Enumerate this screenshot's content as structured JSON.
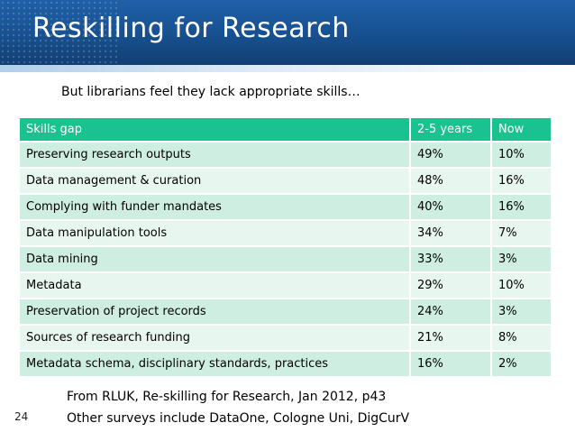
{
  "slide": {
    "title": "Reskilling for Research",
    "subtitle": "But librarians feel they lack appropriate skills…",
    "number": "24"
  },
  "table": {
    "headers": [
      "Skills gap",
      "2-5 years",
      "Now"
    ],
    "rows": [
      [
        "Preserving research outputs",
        "49%",
        "10%"
      ],
      [
        "Data management & curation",
        "48%",
        "16%"
      ],
      [
        "Complying with funder mandates",
        "40%",
        "16%"
      ],
      [
        "Data manipulation tools",
        "34%",
        "7%"
      ],
      [
        "Data mining",
        "33%",
        "3%"
      ],
      [
        "Metadata",
        "29%",
        "10%"
      ],
      [
        "Preservation of project records",
        "24%",
        "3%"
      ],
      [
        "Sources of research funding",
        "21%",
        "8%"
      ],
      [
        "Metadata schema, disciplinary standards, practices",
        "16%",
        "2%"
      ]
    ]
  },
  "footer": {
    "line1": "From RLUK, Re-skilling for Research, Jan 2012, p43",
    "line2": "Other surveys include DataOne, Cologne Uni, DigCurV"
  },
  "colors": {
    "header_bg": "#1f5fa8",
    "table_header_bg": "#19c28e",
    "row_odd_bg": "#cfeee2",
    "row_even_bg": "#e8f6f0"
  }
}
